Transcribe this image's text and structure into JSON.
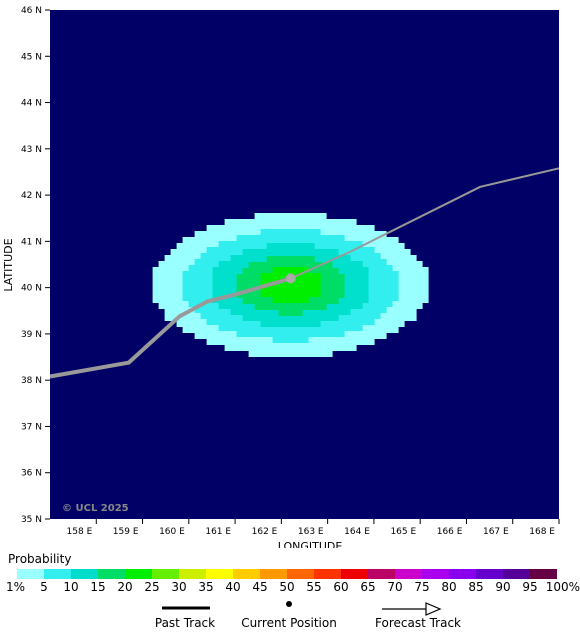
{
  "map": {
    "lon_range": [
      157,
      168
    ],
    "lat_range": [
      35,
      46
    ],
    "lon_ticks": [
      "158 E",
      "159 E",
      "160 E",
      "161 E",
      "162 E",
      "163 E",
      "164 E",
      "165 E",
      "166 E",
      "167 E",
      "168 E"
    ],
    "lat_ticks": [
      "35 N",
      "36 N",
      "37 N",
      "38 N",
      "39 N",
      "40 N",
      "41 N",
      "42 N",
      "43 N",
      "44 N",
      "45 N",
      "46 N"
    ],
    "xlabel": "LONGITUDE",
    "ylabel": "LATITUDE",
    "copyright": "© UCL 2025",
    "ocean_color": "#000066",
    "track_color": "#999999",
    "past_track": [
      [
        157.0,
        38.08
      ],
      [
        158.7,
        38.38
      ],
      [
        159.8,
        39.38
      ],
      [
        160.4,
        39.7
      ],
      [
        161.0,
        39.85
      ],
      [
        162.2,
        40.2
      ]
    ],
    "forecast_track": [
      [
        162.2,
        40.2
      ],
      [
        163.5,
        40.78
      ],
      [
        166.3,
        42.18
      ],
      [
        168.0,
        42.58
      ]
    ],
    "current_position": [
      162.2,
      40.2
    ],
    "probability_field": {
      "center": [
        162.2,
        40.05
      ],
      "levels": [
        {
          "prob": 1,
          "color": "#99ffff",
          "rx": 3.0,
          "ry": 1.55
        },
        {
          "prob": 5,
          "color": "#33eeee",
          "rx": 2.35,
          "ry": 1.2
        },
        {
          "prob": 10,
          "color": "#00e0cc",
          "rx": 1.75,
          "ry": 0.9
        },
        {
          "prob": 15,
          "color": "#00dd66",
          "rx": 1.2,
          "ry": 0.62
        },
        {
          "prob": 20,
          "color": "#00ee00",
          "rx": 0.7,
          "ry": 0.38
        }
      ]
    }
  },
  "legend": {
    "title": "Probability",
    "colors": [
      "#99ffff",
      "#33eeee",
      "#00ddcc",
      "#00dd66",
      "#00ee00",
      "#66ee00",
      "#ccee00",
      "#ffff00",
      "#ffcc00",
      "#ff9900",
      "#ff6600",
      "#ff3300",
      "#ee0000",
      "#bb0066",
      "#cc00cc",
      "#aa00ee",
      "#8800ee",
      "#6600cc",
      "#550099",
      "#660044"
    ],
    "labels": [
      "1%",
      "5",
      "10",
      "15",
      "20",
      "25",
      "30",
      "35",
      "40",
      "45",
      "50",
      "55",
      "60",
      "65",
      "70",
      "75",
      "80",
      "85",
      "90",
      "95",
      "100%"
    ]
  },
  "key": {
    "past_track": "Past Track",
    "current_position": "Current Position",
    "forecast_track": "Forecast Track"
  }
}
